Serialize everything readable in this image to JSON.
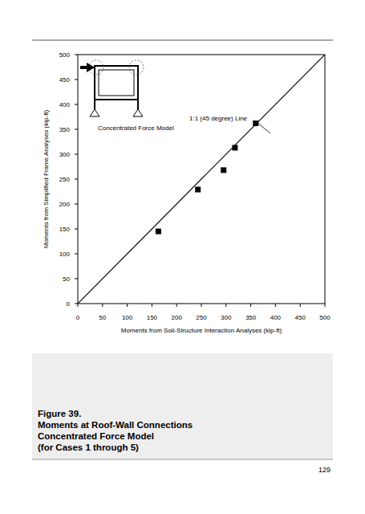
{
  "chart_data": {
    "type": "scatter",
    "x_label": "Moments from Soil-Structure Interaction Analyses (kip-ft)",
    "y_label": "Moments from Simplified Frame Analyses (kip-ft)",
    "x": [
      163,
      243,
      295,
      318,
      360
    ],
    "values": [
      145,
      229,
      268,
      313,
      362
    ],
    "color": "#000000",
    "marker": "square",
    "xlim": [
      0,
      500
    ],
    "ylim": [
      0,
      500
    ],
    "xticks": [
      0,
      50,
      100,
      150,
      200,
      250,
      300,
      350,
      400,
      450,
      500
    ],
    "yticks": [
      0,
      50,
      100,
      150,
      200,
      250,
      300,
      350,
      400,
      450,
      500
    ],
    "grid": false,
    "reference_line": {
      "label": "1:1 (45 degree) Line",
      "x": [
        0,
        500
      ],
      "y": [
        0,
        500
      ]
    },
    "inset_label": "Concentrated Force Model",
    "caption": [
      "Figure 39.",
      "Moments at Roof-Wall Connections",
      "Concentrated Force Model",
      "(for Cases 1 through 5)"
    ],
    "page_number": "129"
  }
}
